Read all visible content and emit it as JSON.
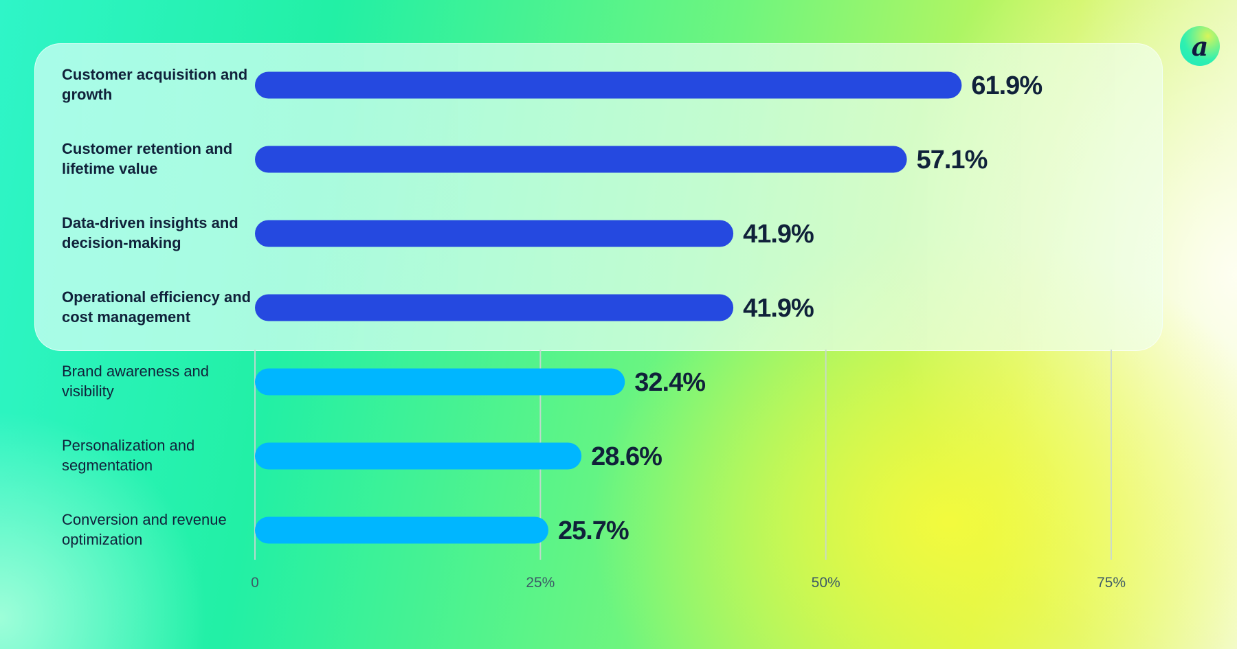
{
  "chart_data": {
    "type": "bar",
    "orientation": "horizontal",
    "categories": [
      "Customer acquisition and growth",
      "Customer retention and lifetime value",
      "Data-driven insights and decision-making",
      "Operational efficiency and cost management",
      "Brand awareness and visibility",
      "Personalization and segmentation",
      "Conversion and revenue optimization"
    ],
    "values": [
      61.9,
      57.1,
      41.9,
      41.9,
      32.4,
      28.6,
      25.7
    ],
    "data_labels": [
      "61.9%",
      "57.1%",
      "41.9%",
      "41.9%",
      "32.4%",
      "28.6%",
      "25.7%"
    ],
    "highlighted": [
      true,
      true,
      true,
      true,
      false,
      false,
      false
    ],
    "xlim": [
      0,
      75
    ],
    "x_ticks": [
      0,
      25,
      50,
      75
    ],
    "x_tick_labels": [
      "0",
      "25%",
      "50%",
      "75%"
    ],
    "grid": true,
    "colors": {
      "highlight": "#2549e0",
      "normal": "#00b6ff",
      "text": "#10213a"
    }
  },
  "logo": {
    "letter": "a"
  }
}
